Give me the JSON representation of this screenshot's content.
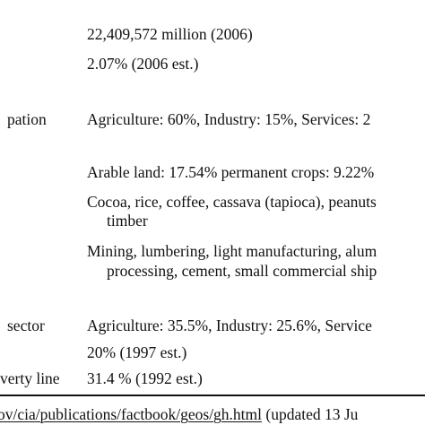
{
  "table": {
    "rows": [
      {
        "label": "",
        "values": [
          "22,409,572 million (2006)"
        ]
      },
      {
        "label": "",
        "values": [
          "2.07% (2006 est.)"
        ]
      },
      {
        "label": "pation",
        "values": [
          "Agriculture: 60%, Industry: 15%, Services: 2"
        ]
      },
      {
        "label": "",
        "values": [
          "Arable land: 17.54% permanent crops: 9.22%"
        ]
      },
      {
        "label": "",
        "values": [
          "Cocoa, rice, coffee, cassava (tapioca), peanuts",
          "timber"
        ]
      },
      {
        "label": "",
        "values": [
          "Mining, lumbering, light manufacturing, alum",
          "processing, cement, small commercial ship"
        ]
      },
      {
        "label": "sector",
        "values": [
          "Agriculture: 35.5%, Industry: 25.6%, Service"
        ]
      },
      {
        "label": "",
        "values": [
          "20% (1997 est.)"
        ]
      },
      {
        "label": "verty line",
        "values": [
          "31.4 % (1992 est.)"
        ]
      }
    ]
  },
  "footnote": {
    "link_text": "ov/cia/publications/factbook/geos/gh.html",
    "suffix": " (updated 13 Ju"
  }
}
